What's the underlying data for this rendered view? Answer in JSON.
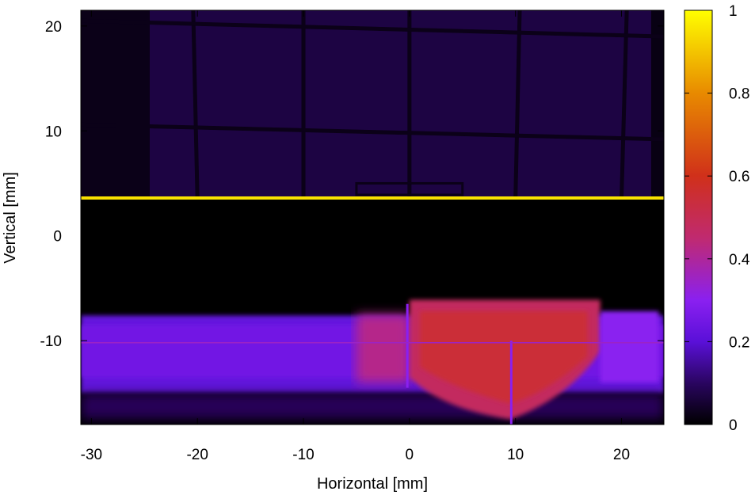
{
  "chart_data": {
    "type": "heatmap",
    "title": "",
    "xlabel": "Horizontal [mm]",
    "ylabel": "Vertical [mm]",
    "xlim": [
      -31,
      24
    ],
    "ylim": [
      -18,
      21.5
    ],
    "x_ticks": [
      -30,
      -20,
      -10,
      0,
      10,
      20
    ],
    "y_ticks": [
      -10,
      0,
      10,
      20
    ],
    "x_tick_labels": [
      "-30",
      "-20",
      "-10",
      "0",
      "10",
      "20"
    ],
    "y_tick_labels": [
      "-10",
      "0",
      "10",
      "20"
    ],
    "colorbar": {
      "range": [
        0,
        1
      ],
      "ticks": [
        0,
        0.2,
        0.4,
        0.6,
        0.8,
        1
      ],
      "tick_labels": [
        "0",
        "0.2",
        "0.4",
        "0.6",
        "0.8",
        "1"
      ],
      "colormap": "black-purple-red-yellow",
      "stops": [
        {
          "value": 0.0,
          "color": "#000000"
        },
        {
          "value": 0.1,
          "color": "#2a0560"
        },
        {
          "value": 0.2,
          "color": "#5a10d8"
        },
        {
          "value": 0.3,
          "color": "#8a20f0"
        },
        {
          "value": 0.45,
          "color": "#c02a70"
        },
        {
          "value": 0.6,
          "color": "#d0301a"
        },
        {
          "value": 0.8,
          "color": "#e88a00"
        },
        {
          "value": 1.0,
          "color": "#ffff00"
        }
      ]
    },
    "grid": false,
    "features": [
      {
        "name": "upper background grid",
        "x_range": [
          -31,
          24
        ],
        "y_range": [
          3.5,
          21.5
        ],
        "value": 0.07
      },
      {
        "name": "bright horizontal edge line",
        "y": 3.6,
        "x_range": [
          -31,
          24
        ],
        "value": 0.95
      },
      {
        "name": "dark gap",
        "x_range": [
          -31,
          24
        ],
        "y_range": [
          -7.5,
          3.4
        ],
        "value": 0.0
      },
      {
        "name": "lower beam band",
        "x_range": [
          -31,
          24
        ],
        "y_range": [
          -15,
          -7.5
        ],
        "value": 0.25
      },
      {
        "name": "central hot region",
        "x_range": [
          0,
          18
        ],
        "y_range": [
          -17.5,
          -6
        ],
        "value": 0.55
      },
      {
        "name": "thin horizontal line",
        "y": -10.2,
        "x_range": [
          -31,
          24
        ],
        "value": 0.35
      }
    ]
  }
}
